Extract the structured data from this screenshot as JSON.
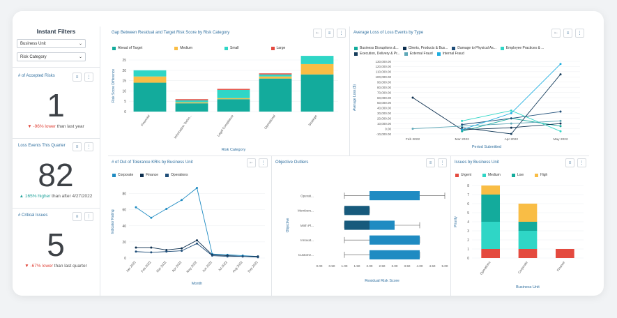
{
  "filters": {
    "title": "Instant Filters",
    "business_unit": "Business Unit",
    "risk_category": "Risk Category"
  },
  "kpis": [
    {
      "title": "# of Accepted Risks",
      "value": "1",
      "arrow": "▼",
      "change": "-96% lower",
      "suffix": " than last year",
      "color": "#e0453a"
    },
    {
      "title": "Loss Events This Quarter",
      "value": "82",
      "arrow": "▲",
      "change": "165% higher",
      "suffix": " than after 4/27/2022",
      "color": "#22a39b"
    },
    {
      "title": "# Critical Issues",
      "value": "5",
      "arrow": "▼",
      "change": "-67% lower",
      "suffix": " than last quarter",
      "color": "#e0453a"
    }
  ],
  "panels": {
    "gap_title": "Gap Between Residual and Target Risk Score by Risk Category",
    "loss_title": "Average Loss of Loss Events by Type",
    "kri_title": "# of Out of Tolerance KRIs by Business Unit",
    "outlier_title": "Objective Outliers",
    "issues_title": "Issues by Business Unit"
  },
  "chart_data": [
    {
      "type": "bar",
      "stacked": true,
      "title": "Gap Between Residual and Target Risk Score by Risk Category",
      "categories": [
        "Financial",
        "Information Techn...",
        "Legal Compliance",
        "Operational",
        "Strategic"
      ],
      "series": [
        {
          "name": "Ahead of Target",
          "color": "#13ab9c",
          "values": [
            14,
            4,
            6,
            16,
            18
          ]
        },
        {
          "name": "Medium",
          "color": "#f9bd45",
          "values": [
            3,
            0.5,
            0.5,
            1,
            5
          ]
        },
        {
          "name": "Small",
          "color": "#2fd6c6",
          "values": [
            3,
            1,
            4,
            1,
            4
          ]
        },
        {
          "name": "Large",
          "color": "#e44a3f",
          "values": [
            0,
            0.5,
            0.5,
            0.5,
            0
          ]
        }
      ],
      "xlabel": "Risk Category",
      "ylabel": "Risk Score Difference",
      "ylim": [
        0,
        25
      ],
      "yticks": [
        "0",
        "5",
        "10",
        "15",
        "20",
        "25"
      ]
    },
    {
      "type": "line",
      "title": "Average Loss of Loss Events by Type",
      "categories": [
        "Feb 2022",
        "Mar 2022",
        "Apr 2022",
        "May 2022"
      ],
      "series": [
        {
          "name": "Business Disruptions &...",
          "color": "#13ab9c",
          "values": [
            null,
            -5000,
            20000,
            5000
          ]
        },
        {
          "name": "Clients, Products & Bus...",
          "color": "#0d2f4f",
          "values": [
            60000,
            -2000,
            2000,
            10000
          ]
        },
        {
          "name": "Damage to Physical As...",
          "color": "#1f4e79",
          "values": [
            null,
            8000,
            20000,
            33000
          ]
        },
        {
          "name": "Employee Practices & ...",
          "color": "#2fd6c6",
          "values": [
            null,
            15000,
            35000,
            -5000
          ]
        },
        {
          "name": "Execution, Delivery & Pr...",
          "color": "#163d5c",
          "values": [
            null,
            2000,
            -10000,
            105000
          ]
        },
        {
          "name": "External Fraud",
          "color": "#5fa8b8",
          "values": [
            0,
            5000,
            10000,
            15000
          ]
        },
        {
          "name": "Internal Fraud",
          "color": "#1eaee0",
          "values": [
            null,
            -2000,
            30000,
            125000
          ]
        }
      ],
      "xlabel": "Period Submitted",
      "ylabel": "Average Loss ($)",
      "ylim": [
        -10000,
        130000
      ],
      "yticks": [
        "-10,000.00",
        "0.00",
        "10,000.00",
        "20,000.00",
        "30,000.00",
        "40,000.00",
        "50,000.00",
        "60,000.00",
        "70,000.00",
        "80,000.00",
        "90,000.00",
        "100,000.00",
        "110,000.00",
        "120,000.00",
        "130,000.00"
      ]
    },
    {
      "type": "line",
      "title": "# of Out of Tolerance KRIs by Business Unit",
      "categories": [
        "Jan 2022",
        "Feb 2022",
        "Mar 2022",
        "Apr 2022",
        "May 2022",
        "Jun 2022",
        "Jul 2022",
        "Aug 2022",
        "Sep 2022"
      ],
      "series": [
        {
          "name": "Corporate",
          "color": "#1f8bc2",
          "values": [
            63,
            50,
            61,
            72,
            87,
            5,
            4,
            3,
            2
          ]
        },
        {
          "name": "Finance",
          "color": "#0d2f4f",
          "values": [
            13,
            13,
            10,
            12,
            22,
            4,
            3,
            2,
            2
          ]
        },
        {
          "name": "Operations",
          "color": "#1f4e79",
          "values": [
            8,
            7,
            8,
            9,
            18,
            3,
            2,
            2,
            1
          ]
        }
      ],
      "xlabel": "Month",
      "ylabel": "Indicator Rating",
      "ylim": [
        0,
        90
      ],
      "yticks": [
        "0",
        "20",
        "40",
        "60",
        "80"
      ]
    },
    {
      "type": "box",
      "title": "Objective Outliers",
      "categories": [
        "Operati...",
        "Membors...",
        "Minh Pl...",
        "Innovat...",
        "Custome..."
      ],
      "series": [
        {
          "name": "Operati...",
          "color": "#1f8bc2",
          "min": 1.0,
          "q1": 2.0,
          "q3": 4.0,
          "max": 5.0
        },
        {
          "name": "Membors...",
          "color": "#175a7c",
          "min": 1.0,
          "q1": 1.0,
          "q3": 2.0,
          "max": 2.0
        },
        {
          "name": "Minh Pl...",
          "color": "#1f8bc2",
          "dark_color": "#175a7c",
          "min": 1.0,
          "q1": 1.0,
          "median": 2.0,
          "q3": 3.0,
          "max": 4.0
        },
        {
          "name": "Innovat...",
          "color": "#1f8bc2",
          "min": 1.0,
          "q1": 2.0,
          "q3": 4.0,
          "max": 4.0
        },
        {
          "name": "Custome...",
          "color": "#1f8bc2",
          "min": 1.0,
          "q1": 2.0,
          "q3": 4.0,
          "max": 4.0
        }
      ],
      "xlabel": "Residual Risk Score",
      "ylabel": "Objective",
      "xlim": [
        0,
        5
      ],
      "xticks": [
        "0.00",
        "0.50",
        "1.00",
        "1.50",
        "2.00",
        "2.50",
        "3.00",
        "3.50",
        "4.00",
        "4.50",
        "5.00"
      ]
    },
    {
      "type": "bar",
      "stacked": true,
      "title": "Issues by Business Unit",
      "categories": [
        "Operations",
        "Corporate",
        "Finance"
      ],
      "series": [
        {
          "name": "Urgent",
          "color": "#e44a3f",
          "values": [
            1,
            1,
            1
          ]
        },
        {
          "name": "Medium",
          "color": "#2fd6c6",
          "values": [
            3,
            2,
            0
          ]
        },
        {
          "name": "Low",
          "color": "#13ab9c",
          "values": [
            3,
            1,
            0
          ]
        },
        {
          "name": "High",
          "color": "#f9bd45",
          "values": [
            1,
            2,
            0
          ]
        }
      ],
      "xlabel": "Business Unit",
      "ylabel": "Priority",
      "ylim": [
        0,
        8
      ],
      "yticks": [
        "0",
        "1",
        "2",
        "3",
        "4",
        "5",
        "6",
        "7",
        "8"
      ]
    }
  ]
}
